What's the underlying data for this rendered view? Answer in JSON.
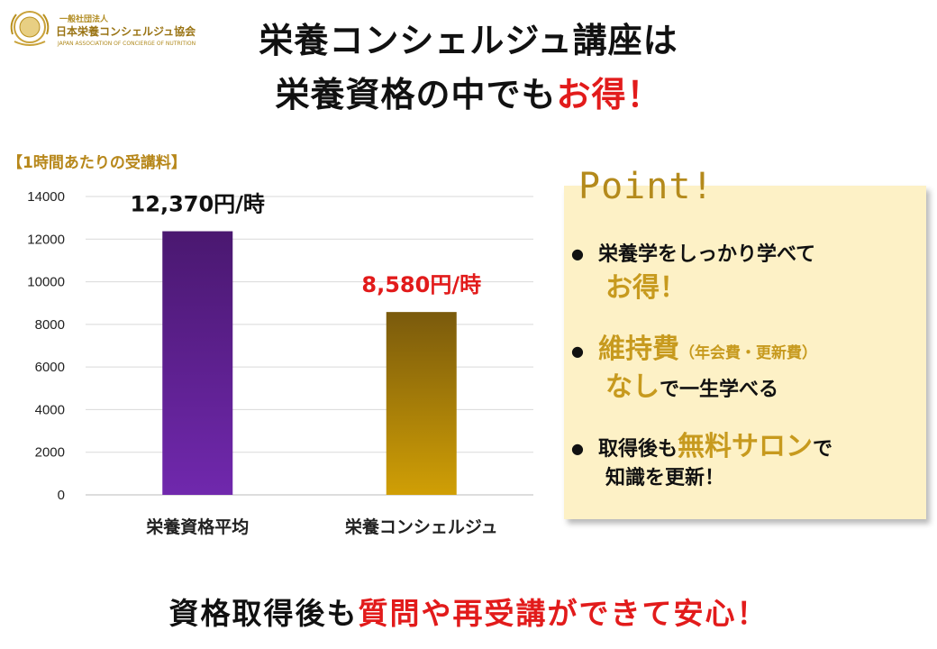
{
  "logo": {
    "small": "一般社団法人",
    "name": "日本栄養コンシェルジュ協会",
    "en": "JAPAN ASSOCIATION OF CONCIERGE OF NUTRITION"
  },
  "title": {
    "line1": "栄養コンシェルジュ講座は",
    "line2_main": "栄養資格の中でも",
    "line2_highlight": "お得！"
  },
  "chart_label": "【1時間あたりの受講料】",
  "chart_data": {
    "type": "bar",
    "categories": [
      "栄養資格平均",
      "栄養コンシェルジュ"
    ],
    "values": [
      12370,
      8580
    ],
    "data_labels": [
      "12,370円/時",
      "8,580円/時"
    ],
    "ylim": [
      0,
      14000
    ],
    "yticks": [
      0,
      2000,
      4000,
      6000,
      8000,
      10000,
      12000,
      14000
    ],
    "grid": true,
    "bar_colors": [
      [
        "#4a1870",
        "#7028ad"
      ],
      [
        "#7a5a0c",
        "#d09f05"
      ]
    ],
    "label_colors": [
      "#111111",
      "#e21b1b"
    ]
  },
  "point": {
    "title": "Point!",
    "items": [
      {
        "l1": "栄養学をしっかり学べて",
        "l2_gold": "お得！"
      },
      {
        "l1_gold": "維持費",
        "l1_small": "（年会費・更新費）",
        "l2_gold": "なし",
        "l2": "で一生学べる"
      },
      {
        "l1": "取得後も",
        "l1_gold": "無料サロン",
        "l1_tail": "で",
        "l2": "知識を更新！"
      }
    ],
    "bullet": "●"
  },
  "footer": {
    "main": "資格取得後も",
    "highlight": "質問や再受講ができて安心！"
  }
}
